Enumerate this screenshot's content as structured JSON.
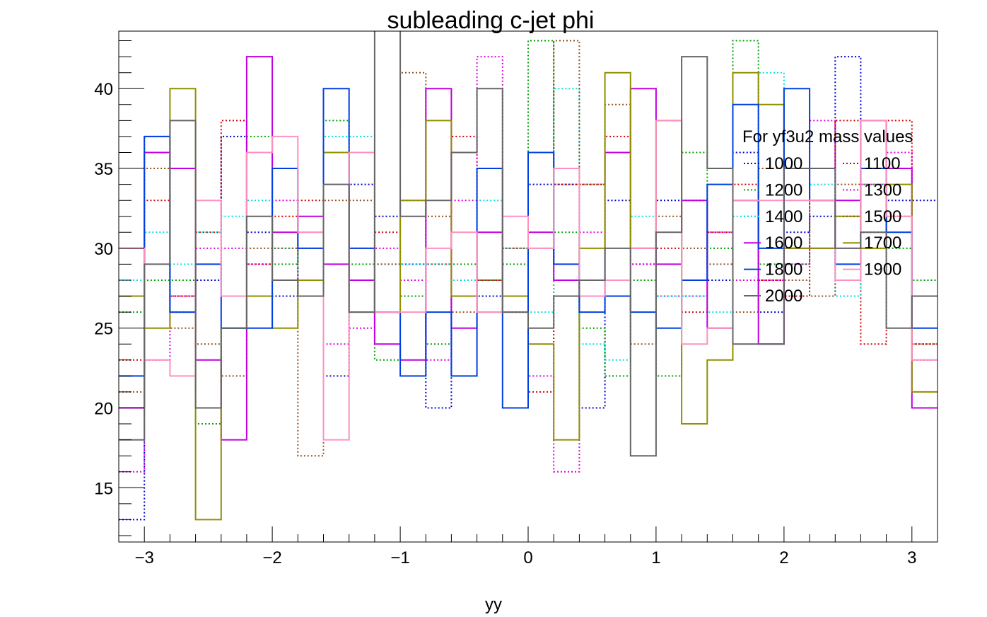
{
  "chart_data": {
    "type": "line",
    "title": "subleading c-jet phi",
    "xlabel": "yy",
    "ylabel": "",
    "xlim": [
      -3.2,
      3.2
    ],
    "ylim": [
      11.6,
      43.6
    ],
    "bin_edges": [
      -3.2,
      -3.0,
      -2.8,
      -2.6,
      -2.4,
      -2.2,
      -2.0,
      -1.8,
      -1.6,
      -1.4,
      -1.2,
      -1.0,
      -0.8,
      -0.6,
      -0.4,
      -0.2,
      0.0,
      0.2,
      0.4,
      0.6,
      0.8,
      1.0,
      1.2,
      1.4,
      1.6,
      1.8,
      2.0,
      2.2,
      2.4,
      2.6,
      2.8,
      3.0,
      3.2
    ],
    "x_ticks": [
      "−3",
      "−2",
      "−1",
      "0",
      "1",
      "2",
      "3"
    ],
    "y_ticks": [
      "15",
      "20",
      "25",
      "30",
      "35",
      "40"
    ],
    "legend": {
      "title": "For yf3u2 mass values",
      "position": "top-right",
      "columns": 2
    },
    "series": [
      {
        "name": "1000",
        "color": "#0000d0",
        "style": "dotted",
        "values": [
          13,
          37,
          26,
          28,
          37,
          31,
          27,
          30,
          22,
          34,
          32,
          29,
          20,
          27,
          27,
          26,
          34,
          34,
          20,
          33,
          29,
          33,
          33,
          28,
          36,
          26,
          31,
          32,
          42,
          31,
          33,
          33
        ]
      },
      {
        "name": "1100",
        "color": "#d00000",
        "style": "dotted",
        "values": [
          23,
          33,
          27,
          31,
          38,
          29,
          32,
          33,
          36,
          30,
          31,
          33,
          29,
          37,
          28,
          30,
          21,
          34,
          34,
          37,
          30,
          30,
          26,
          31,
          34,
          28,
          27,
          35,
          38,
          24,
          38,
          24
        ]
      },
      {
        "name": "1200",
        "color": "#00a000",
        "style": "dotted",
        "values": [
          26,
          28,
          28,
          19,
          25,
          37,
          29,
          31,
          38,
          29,
          23,
          27,
          24,
          29,
          28,
          29,
          43,
          31,
          25,
          22,
          28,
          22,
          36,
          30,
          43,
          29,
          29,
          33,
          32,
          34,
          30,
          28
        ]
      },
      {
        "name": "1300",
        "color": "#e000e0",
        "style": "dotted",
        "values": [
          16,
          23,
          27,
          30,
          30,
          29,
          33,
          28,
          24,
          25,
          30,
          28,
          23,
          33,
          42,
          26,
          22,
          16,
          31,
          36,
          29,
          27,
          27,
          31,
          28,
          28,
          29,
          38,
          30,
          34,
          36,
          23
        ]
      },
      {
        "name": "1400",
        "color": "#00e0e0",
        "style": "dotted",
        "values": [
          28,
          31,
          29,
          31,
          32,
          33,
          30,
          28,
          37,
          37,
          29,
          29,
          29,
          28,
          33,
          30,
          26,
          40,
          24,
          23,
          32,
          27,
          27,
          26,
          32,
          41,
          33,
          34,
          27,
          38,
          31,
          27
        ]
      },
      {
        "name": "1500",
        "color": "#905020",
        "style": "dotted",
        "values": [
          21,
          35,
          25,
          24,
          22,
          30,
          30,
          17,
          33,
          33,
          29,
          41,
          32,
          26,
          28,
          30,
          30,
          43,
          34,
          39,
          24,
          32,
          30,
          29,
          26,
          35,
          28,
          27,
          34,
          30,
          32,
          24
        ]
      },
      {
        "name": "1600",
        "color": "#c000e0",
        "style": "solid",
        "values": [
          20,
          36,
          35,
          23,
          18,
          42,
          31,
          32,
          29,
          28,
          24,
          23,
          40,
          25,
          31,
          27,
          31,
          28,
          27,
          36,
          40,
          29,
          33,
          25,
          33,
          24,
          30,
          30,
          33,
          38,
          35,
          20
        ]
      },
      {
        "name": "1700",
        "color": "#909000",
        "style": "solid",
        "values": [
          27,
          25,
          40,
          13,
          25,
          27,
          25,
          28,
          36,
          26,
          26,
          33,
          38,
          27,
          26,
          27,
          24,
          18,
          30,
          41,
          30,
          38,
          19,
          23,
          41,
          39,
          30,
          30,
          32,
          30,
          34,
          21
        ]
      },
      {
        "name": "1800",
        "color": "#0040e0",
        "style": "solid",
        "values": [
          22,
          37,
          26,
          29,
          25,
          25,
          35,
          30,
          40,
          30,
          26,
          22,
          26,
          22,
          35,
          20,
          36,
          29,
          26,
          27,
          26,
          25,
          28,
          34,
          39,
          30,
          40,
          33,
          29,
          35,
          31,
          25
        ]
      },
      {
        "name": "1900",
        "color": "#ff90c0",
        "style": "solid",
        "values": [
          30,
          23,
          22,
          33,
          27,
          36,
          37,
          31,
          18,
          36,
          26,
          26,
          30,
          31,
          26,
          32,
          30,
          35,
          27,
          28,
          30,
          38,
          24,
          25,
          33,
          33,
          33,
          33,
          28,
          38,
          32,
          23
        ]
      },
      {
        "name": "2000",
        "color": "#666666",
        "style": "solid",
        "values": [
          18,
          29,
          38,
          20,
          25,
          32,
          28,
          27,
          34,
          26,
          45,
          32,
          33,
          36,
          40,
          26,
          25,
          27,
          28,
          30,
          17,
          31,
          42,
          35,
          24,
          24,
          35,
          35,
          30,
          31,
          25,
          27
        ]
      }
    ]
  }
}
